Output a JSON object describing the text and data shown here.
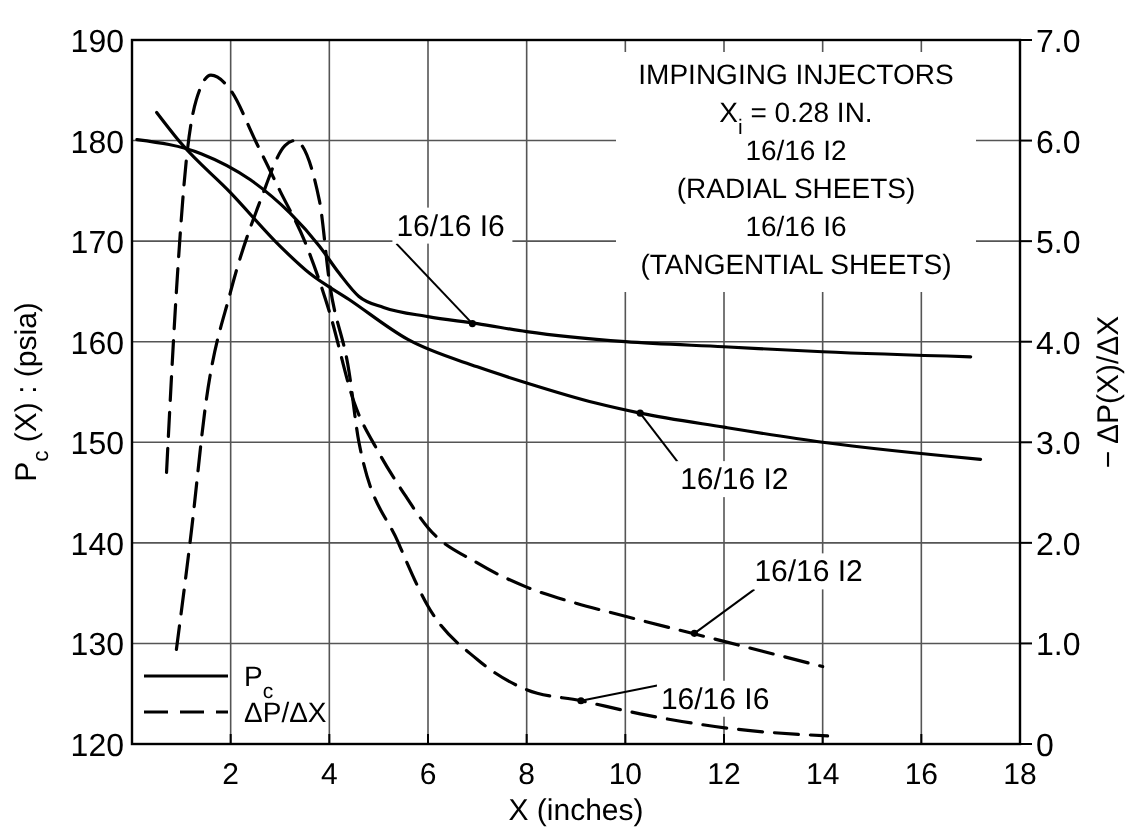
{
  "chart_data": {
    "type": "line",
    "xlabel": "X (inches)",
    "ylabel": "P$_{c}$ (X) : (psia)",
    "y2label": "− ΔP(X)/ΔX",
    "xlim": [
      0,
      18
    ],
    "xticks": [
      2,
      4,
      6,
      8,
      10,
      12,
      14,
      16,
      18
    ],
    "ylim": [
      120,
      190
    ],
    "yticks": [
      120,
      130,
      140,
      150,
      160,
      170,
      180,
      190
    ],
    "y2lim": [
      0,
      7
    ],
    "y2ticks": [
      0,
      {
        "value": 1,
        "label": "1.0"
      },
      {
        "value": 2,
        "label": "2.0"
      },
      {
        "value": 3,
        "label": "3.0"
      },
      {
        "value": 4,
        "label": "4.0"
      },
      {
        "value": 5,
        "label": "5.0"
      },
      {
        "value": 6,
        "label": "6.0"
      },
      {
        "value": 7,
        "label": "7.0"
      }
    ],
    "grid": true,
    "legend": "bottom left",
    "marker": "none",
    "series": [
      {
        "name": "P$_{c}$",
        "color": "#000000",
        "line_style": "solid",
        "x": [
          0.1,
          1.4,
          2.4,
          3.2,
          3.8,
          4.2,
          4.6,
          5.1,
          6,
          7,
          8,
          10,
          12,
          14,
          17
        ],
        "values": [
          180.1,
          178.7,
          176.1,
          172.8,
          169.5,
          166.8,
          164.5,
          163.4,
          162.5,
          161.8,
          161,
          160,
          159.5,
          159,
          158.5
        ]
      },
      {
        "color": "#000000",
        "line_style": "solid",
        "x": [
          0.5,
          1,
          2,
          3,
          3.6,
          4.4,
          5.6,
          7,
          8,
          9.4,
          10.3,
          12,
          14,
          17.2
        ],
        "values": [
          182.8,
          179.7,
          174.8,
          169.5,
          166.8,
          164.2,
          160.2,
          157.5,
          155.9,
          153.9,
          152.9,
          151.5,
          150,
          148.3
        ]
      },
      {
        "name": "ΔP/ΔX",
        "color": "#000000",
        "line_style": "dashed",
        "axis": "y2",
        "x": [
          0.7,
          0.9,
          1.1,
          1.3,
          1.6,
          2,
          2.5,
          3,
          3.5,
          4,
          4.5,
          5,
          5.5,
          6,
          7,
          8,
          9,
          10,
          12,
          14
        ],
        "values": [
          2.7,
          4.5,
          5.8,
          6.4,
          6.65,
          6.5,
          6,
          5.5,
          5,
          4.3,
          3.4,
          2.9,
          2.5,
          2.15,
          1.8,
          1.56,
          1.4,
          1.27,
          1.02,
          0.77
        ]
      },
      {
        "color": "#000000",
        "line_style": "dashed",
        "axis": "y2",
        "x": [
          0.9,
          1.2,
          1.5,
          2,
          2.6,
          3.1,
          3.3,
          3.8,
          4,
          4.4,
          4.6,
          5.4,
          6,
          7,
          8,
          9.1,
          10.3,
          12.2,
          14.1
        ],
        "values": [
          0.94,
          2.1,
          3.4,
          4.5,
          5.4,
          5.95,
          6,
          5.4,
          4.6,
          3.7,
          3,
          2,
          1.37,
          0.84,
          0.54,
          0.43,
          0.3,
          0.15,
          0.08
        ]
      }
    ],
    "annotations": [
      "IMPINGING INJECTORS",
      "X$_{i}$ = 0.28 IN.",
      "16/16 I2",
      "(RADIAL SHEETS)",
      "16/16 I6",
      "(TANGENTIAL SHEETS)",
      {
        "text": "16/16 I6",
        "x": 6.9,
        "y": 161.8
      },
      {
        "text": "16/16 I2",
        "x": 10.3,
        "y": 152.9
      },
      {
        "text": "16/16 I2",
        "x": 11.4,
        "y": 131
      },
      {
        "text": "16/16 I6",
        "x": 9.1,
        "y": 124.3
      }
    ]
  }
}
